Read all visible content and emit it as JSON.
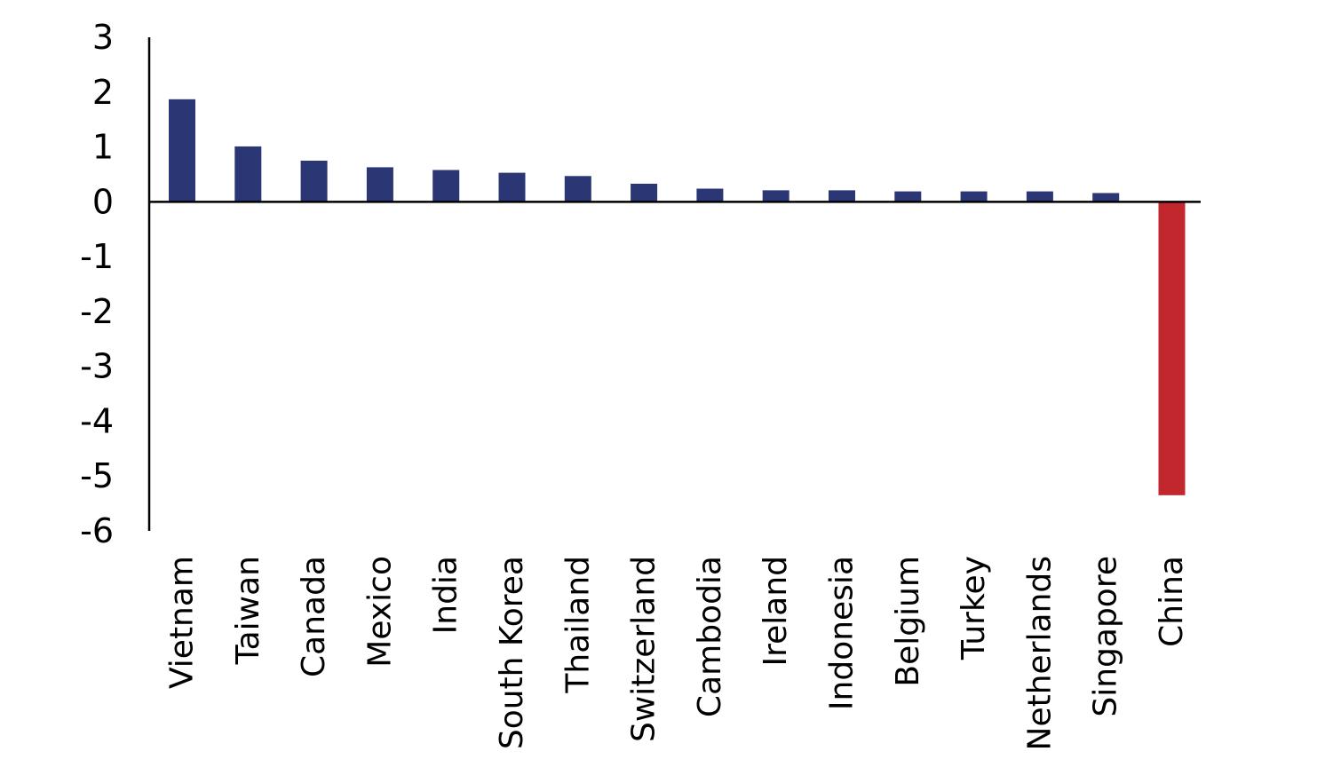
{
  "chart_data": {
    "type": "bar",
    "title": "",
    "xlabel": "",
    "ylabel": "",
    "ylim": [
      -6,
      3
    ],
    "yticks": [
      3,
      2,
      1,
      0,
      -1,
      -2,
      -3,
      -4,
      -5,
      -6
    ],
    "categories": [
      "Vietnam",
      "Taiwan",
      "Canada",
      "Mexico",
      "India",
      "South Korea",
      "Thailand",
      "Switzerland",
      "Cambodia",
      "Ireland",
      "Indonesia",
      "Belgium",
      "Turkey",
      "Netherlands",
      "Singapore",
      "China"
    ],
    "values": [
      1.87,
      1.01,
      0.75,
      0.63,
      0.58,
      0.53,
      0.47,
      0.33,
      0.24,
      0.21,
      0.21,
      0.19,
      0.19,
      0.19,
      0.16,
      -5.35
    ],
    "grid": false,
    "legend": "none",
    "colors": {
      "positive": "#2b3674",
      "negative": "#c1272d"
    }
  }
}
